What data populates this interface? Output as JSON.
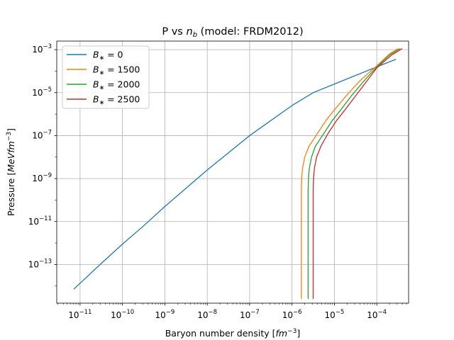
{
  "chart_data": {
    "type": "line",
    "title": "P vs n_b (model: FRDM2012)",
    "title_parts": {
      "prefix": "P vs ",
      "var": "n",
      "sub": "b",
      "suffix": " (model: FRDM2012)"
    },
    "xlabel": "Baryon number density [fm^-3]",
    "xlabel_parts": {
      "prefix": "Baryon number density [",
      "unit": "fm",
      "exp": "−3",
      "suffix": "]"
    },
    "ylabel": "Pressure [MeV fm^-3]",
    "ylabel_parts": {
      "prefix": "Pressure [",
      "unit": "MeVfm",
      "exp": "−3",
      "suffix": "]"
    },
    "x_scale": "log",
    "y_scale": "log",
    "xlim_log10": [
      -11.55,
      -3.25
    ],
    "ylim_log10": [
      -14.8,
      -2.6
    ],
    "grid": true,
    "legend_position": "upper-left",
    "x_ticks": [
      {
        "base": "10",
        "exp": "−11",
        "log": -11
      },
      {
        "base": "10",
        "exp": "−10",
        "log": -10
      },
      {
        "base": "10",
        "exp": "−9",
        "log": -9
      },
      {
        "base": "10",
        "exp": "−8",
        "log": -8
      },
      {
        "base": "10",
        "exp": "−7",
        "log": -7
      },
      {
        "base": "10",
        "exp": "−6",
        "log": -6
      },
      {
        "base": "10",
        "exp": "−5",
        "log": -5
      },
      {
        "base": "10",
        "exp": "−4",
        "log": -4
      }
    ],
    "y_ticks": [
      {
        "base": "10",
        "exp": "−13",
        "log": -13
      },
      {
        "base": "10",
        "exp": "−11",
        "log": -11
      },
      {
        "base": "10",
        "exp": "−9",
        "log": -9
      },
      {
        "base": "10",
        "exp": "−7",
        "log": -7
      },
      {
        "base": "10",
        "exp": "−5",
        "log": -5
      },
      {
        "base": "10",
        "exp": "−3",
        "log": -3
      }
    ],
    "series": [
      {
        "name": "B* = 0",
        "label_value": "0",
        "color": "#1f77b4",
        "points_log10": [
          [
            -11.15,
            -14.15
          ],
          [
            -10.5,
            -12.95
          ],
          [
            -10.0,
            -12.05
          ],
          [
            -9.5,
            -11.2
          ],
          [
            -9.0,
            -10.3
          ],
          [
            -8.5,
            -9.45
          ],
          [
            -8.0,
            -8.6
          ],
          [
            -7.5,
            -7.8
          ],
          [
            -7.0,
            -7.0
          ],
          [
            -6.5,
            -6.3
          ],
          [
            -6.0,
            -5.6
          ],
          [
            -5.5,
            -5.0
          ],
          [
            -5.0,
            -4.6
          ],
          [
            -4.5,
            -4.2
          ],
          [
            -4.0,
            -3.8
          ],
          [
            -3.55,
            -3.45
          ]
        ]
      },
      {
        "name": "B* = 1500",
        "label_value": "1500",
        "color": "#ff7f0e",
        "points_log10": [
          [
            -5.78,
            -14.6
          ],
          [
            -5.78,
            -9.5
          ],
          [
            -5.77,
            -8.9
          ],
          [
            -5.75,
            -8.5
          ],
          [
            -5.7,
            -8.0
          ],
          [
            -5.6,
            -7.5
          ],
          [
            -5.4,
            -6.9
          ],
          [
            -5.2,
            -6.3
          ],
          [
            -5.0,
            -5.8
          ],
          [
            -4.7,
            -5.1
          ],
          [
            -4.4,
            -4.45
          ],
          [
            -4.0,
            -3.75
          ],
          [
            -3.7,
            -3.2
          ],
          [
            -3.5,
            -2.95
          ]
        ]
      },
      {
        "name": "B* = 2000",
        "label_value": "2000",
        "color": "#2ca02c",
        "points_log10": [
          [
            -5.62,
            -14.6
          ],
          [
            -5.62,
            -9.5
          ],
          [
            -5.61,
            -8.9
          ],
          [
            -5.59,
            -8.5
          ],
          [
            -5.54,
            -8.0
          ],
          [
            -5.45,
            -7.5
          ],
          [
            -5.25,
            -6.9
          ],
          [
            -5.05,
            -6.3
          ],
          [
            -4.85,
            -5.8
          ],
          [
            -4.6,
            -5.15
          ],
          [
            -4.3,
            -4.45
          ],
          [
            -4.0,
            -3.8
          ],
          [
            -3.7,
            -3.25
          ],
          [
            -3.45,
            -2.95
          ]
        ]
      },
      {
        "name": "B* = 2500",
        "label_value": "2500",
        "color": "#d62728",
        "points_log10": [
          [
            -5.5,
            -14.6
          ],
          [
            -5.5,
            -9.5
          ],
          [
            -5.49,
            -8.9
          ],
          [
            -5.47,
            -8.5
          ],
          [
            -5.42,
            -8.0
          ],
          [
            -5.32,
            -7.5
          ],
          [
            -5.15,
            -6.9
          ],
          [
            -4.95,
            -6.3
          ],
          [
            -4.75,
            -5.8
          ],
          [
            -4.5,
            -5.15
          ],
          [
            -4.25,
            -4.5
          ],
          [
            -4.0,
            -3.85
          ],
          [
            -3.65,
            -3.25
          ],
          [
            -3.4,
            -2.95
          ]
        ]
      }
    ]
  }
}
